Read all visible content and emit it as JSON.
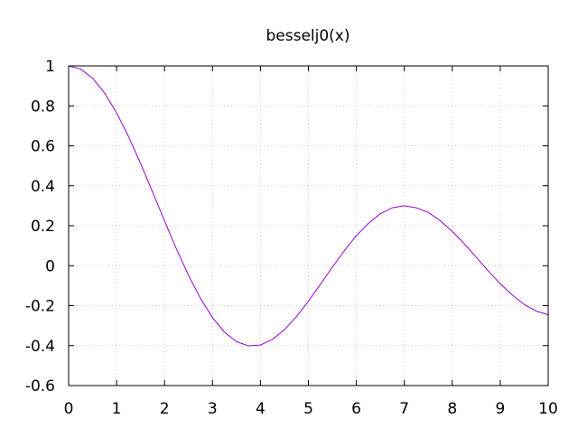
{
  "chart_data": {
    "type": "line",
    "title": "besselj0(x)",
    "xlabel": "",
    "ylabel": "",
    "xlim": [
      0,
      10
    ],
    "ylim": [
      -0.6,
      1
    ],
    "xticks": [
      0,
      1,
      2,
      3,
      4,
      5,
      6,
      7,
      8,
      9,
      10
    ],
    "yticks": [
      -0.6,
      -0.4,
      -0.2,
      0,
      0.2,
      0.4,
      0.6,
      0.8,
      1
    ],
    "grid": true,
    "legend": "none",
    "series": [
      {
        "color": "#9400d3",
        "x": [
          0,
          0.25,
          0.5,
          0.75,
          1,
          1.25,
          1.5,
          1.75,
          2,
          2.25,
          2.5,
          2.75,
          3,
          3.25,
          3.5,
          3.75,
          4,
          4.25,
          4.5,
          4.75,
          5,
          5.25,
          5.5,
          5.75,
          6,
          6.25,
          6.5,
          6.75,
          7,
          7.25,
          7.5,
          7.75,
          8,
          8.25,
          8.5,
          8.75,
          9,
          9.25,
          9.5,
          9.75,
          10
        ],
        "y": [
          1.0,
          0.9844,
          0.9385,
          0.8642,
          0.7652,
          0.6459,
          0.5118,
          0.369,
          0.2239,
          0.0827,
          -0.0484,
          -0.1641,
          -0.2601,
          -0.3328,
          -0.3801,
          -0.4014,
          -0.3971,
          -0.3692,
          -0.3205,
          -0.2551,
          -0.1776,
          -0.0935,
          -0.0068,
          0.0752,
          0.1506,
          0.2117,
          0.2601,
          0.2899,
          0.3001,
          0.2898,
          0.2663,
          0.2251,
          0.1717,
          0.1096,
          0.0419,
          -0.0263,
          -0.0903,
          -0.1465,
          -0.1939,
          -0.2272,
          -0.2459
        ]
      }
    ]
  }
}
